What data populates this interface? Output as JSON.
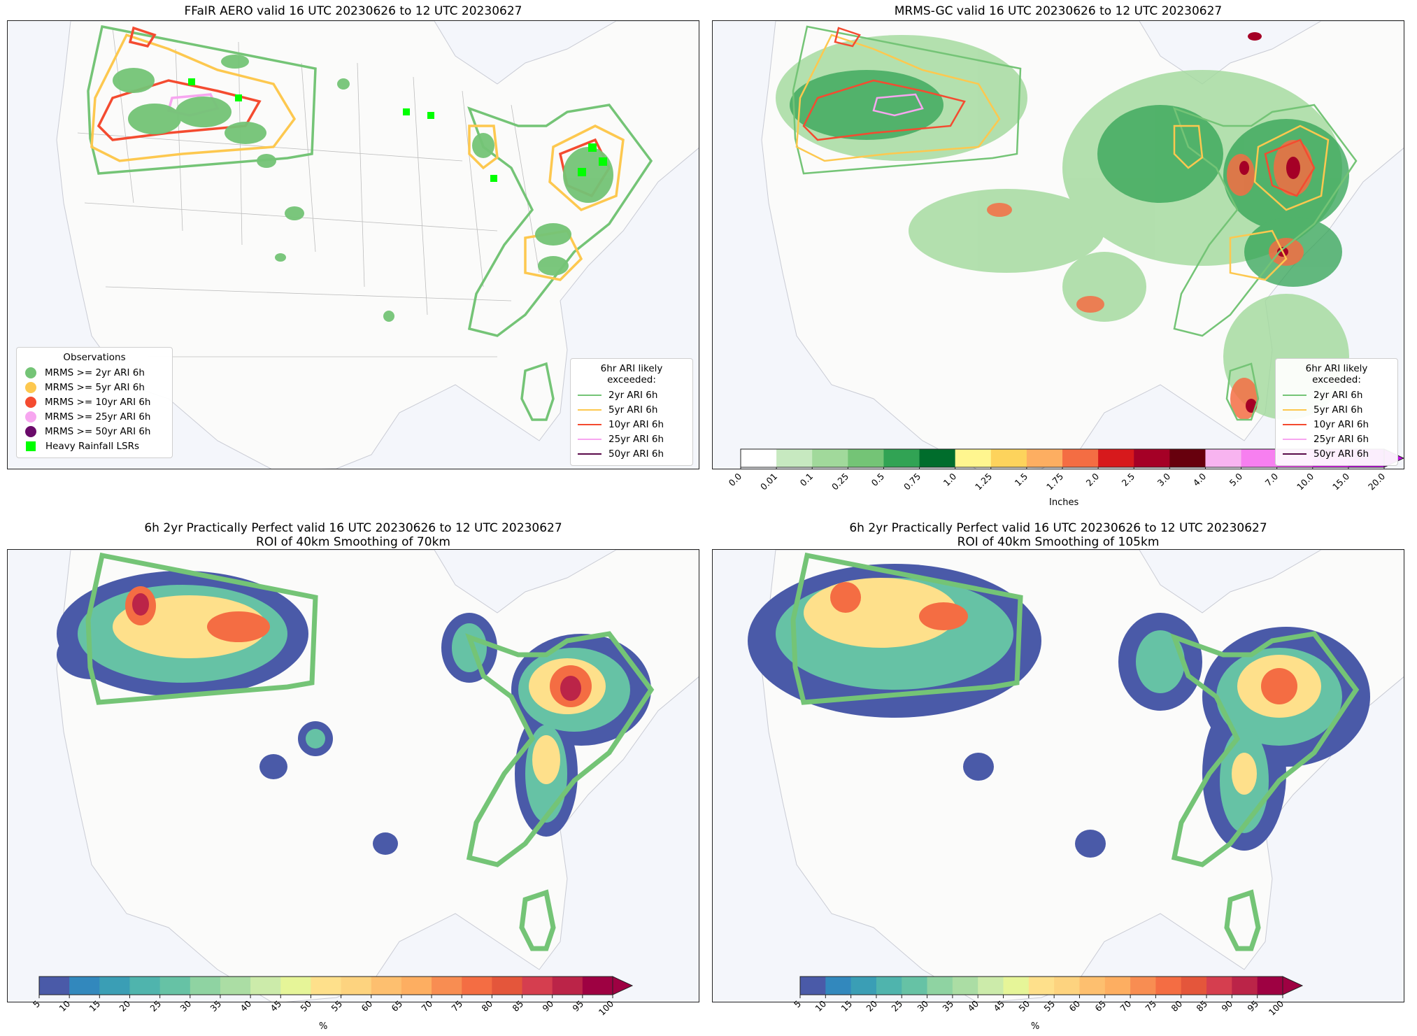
{
  "panels": {
    "p1": {
      "title": "FFaIR AERO valid 16 UTC 20230626 to 12 UTC 20230627",
      "obs_legend": {
        "title": "Observations",
        "items": [
          {
            "label": "MRMS >= 2yr ARI 6h",
            "color": "#74c476",
            "shape": "circle"
          },
          {
            "label": "MRMS >= 5yr ARI 6h",
            "color": "#fdc84f",
            "shape": "circle"
          },
          {
            "label": "MRMS >= 10yr ARI 6h",
            "color": "#f44b30",
            "shape": "circle"
          },
          {
            "label": "MRMS >= 25yr ARI 6h",
            "color": "#f7a6f0",
            "shape": "circle"
          },
          {
            "label": "MRMS >= 50yr ARI 6h",
            "color": "#6a0a6a",
            "shape": "circle"
          },
          {
            "label": "Heavy Rainfall LSRs",
            "color": "#00ff00",
            "shape": "square"
          }
        ]
      },
      "ari_legend": {
        "title": "6hr ARI likely exceeded:",
        "items": [
          {
            "label": "2yr ARI 6h",
            "color": "#74c476"
          },
          {
            "label": "5yr ARI 6h",
            "color": "#fdc84f"
          },
          {
            "label": "10yr ARI 6h",
            "color": "#f44b30"
          },
          {
            "label": "25yr ARI 6h",
            "color": "#f7a6f0"
          },
          {
            "label": "50yr ARI 6h",
            "color": "#5a0a4a"
          }
        ]
      }
    },
    "p2": {
      "title": "MRMS-GC valid 16 UTC 20230626 to 12 UTC 20230627",
      "ari_legend": {
        "title": "6hr ARI likely exceeded:",
        "items": [
          {
            "label": "2yr ARI 6h",
            "color": "#74c476"
          },
          {
            "label": "5yr ARI 6h",
            "color": "#fdc84f"
          },
          {
            "label": "10yr ARI 6h",
            "color": "#f44b30"
          },
          {
            "label": "25yr ARI 6h",
            "color": "#f7a6f0"
          },
          {
            "label": "50yr ARI 6h",
            "color": "#5a0a4a"
          }
        ]
      },
      "colorbar": {
        "unit": "Inches",
        "ticks": [
          "0.0",
          "0.01",
          "0.1",
          "0.25",
          "0.5",
          "0.75",
          "1.0",
          "1.25",
          "1.5",
          "1.75",
          "2.0",
          "2.5",
          "3.0",
          "4.0",
          "5.0",
          "7.0",
          "10.0",
          "15.0",
          "20.0"
        ],
        "colors": [
          "#ffffff",
          "#c7e9c0",
          "#a1d99b",
          "#74c476",
          "#31a354",
          "#006d2c",
          "#fff68f",
          "#fdd35c",
          "#fdae61",
          "#f46d43",
          "#d7191c",
          "#a50026",
          "#67000d",
          "#f8b4f0",
          "#f77ff0",
          "#f050f0",
          "#e020f0",
          "#c010e0"
        ]
      }
    },
    "p3": {
      "title_line1": "6h 2yr Practically Perfect valid 16 UTC 20230626 to 12 UTC 20230627",
      "title_line2": "ROI of 40km Smoothing of 70km",
      "colorbar": {
        "unit": "%",
        "ticks": [
          "5",
          "10",
          "15",
          "20",
          "25",
          "30",
          "35",
          "40",
          "45",
          "50",
          "55",
          "60",
          "65",
          "70",
          "75",
          "80",
          "85",
          "90",
          "95",
          "100"
        ]
      }
    },
    "p4": {
      "title_line1": "6h 2yr Practically Perfect valid 16 UTC 20230626 to 12 UTC 20230627",
      "title_line2": "ROI of 40km Smoothing of 105km",
      "colorbar": {
        "unit": "%",
        "ticks": [
          "5",
          "10",
          "15",
          "20",
          "25",
          "30",
          "35",
          "40",
          "45",
          "50",
          "55",
          "60",
          "65",
          "70",
          "75",
          "80",
          "85",
          "90",
          "95",
          "100"
        ]
      }
    }
  },
  "pct_colors": [
    "#4a5aa8",
    "#3288bd",
    "#3a9eb5",
    "#4fb4ad",
    "#66c2a5",
    "#8fd3a2",
    "#abdda4",
    "#ccebaa",
    "#e6f598",
    "#fee08b",
    "#fdd37f",
    "#fdbf6f",
    "#fdae61",
    "#f88d52",
    "#f46d43",
    "#e4563b",
    "#d53e4f",
    "#bb2448",
    "#9e0142"
  ],
  "ari_outline_colors": {
    "2yr": "#74c476",
    "5yr": "#fdc84f",
    "10yr": "#f44b30",
    "25yr": "#f7a6f0"
  }
}
